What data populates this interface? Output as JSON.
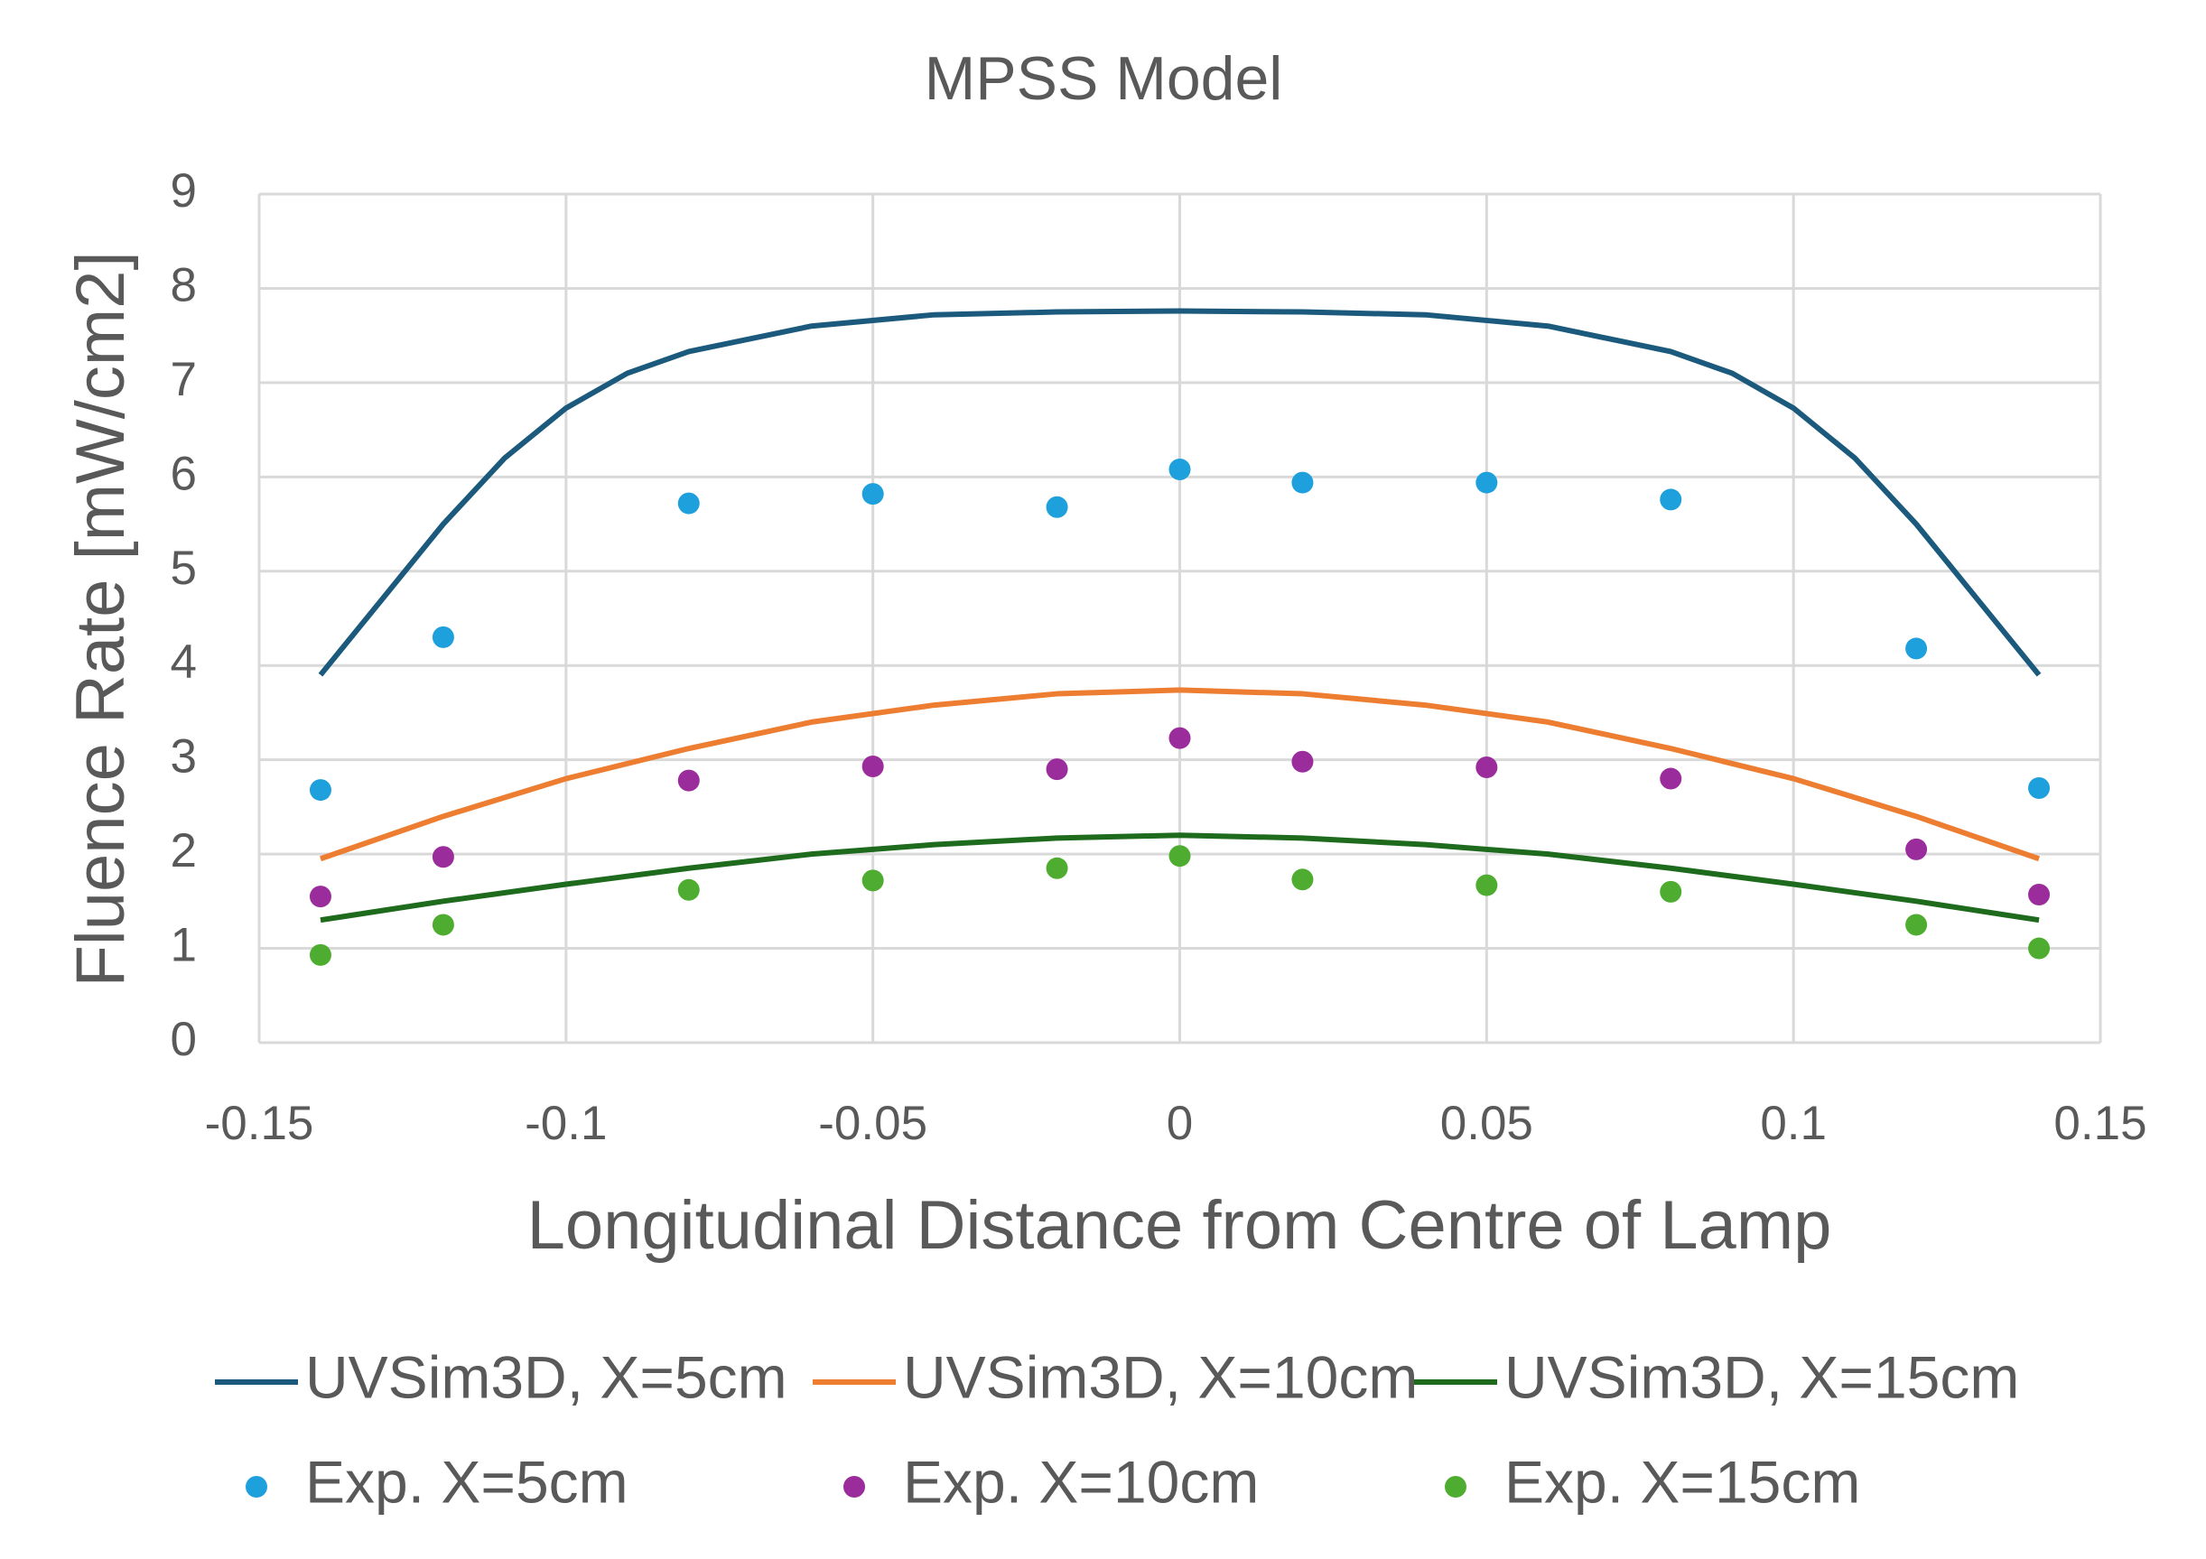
{
  "chart_data": {
    "type": "scatter",
    "title": "MPSS Model",
    "x_label": "Longitudinal Distance from Centre of Lamp",
    "y_label": "Fluence Rate [mW/cm2]",
    "xlim": [
      -0.15,
      0.15
    ],
    "xticks": [
      -0.15,
      -0.1,
      -0.05,
      0,
      0.05,
      0.1,
      0.15
    ],
    "ylim": [
      0,
      9
    ],
    "yticks": [
      0,
      1,
      2,
      3,
      4,
      5,
      6,
      7,
      8,
      9
    ],
    "grid": true,
    "legend": "bottom",
    "series": [
      {
        "name": "UVSim3D, X=5cm",
        "type": "line",
        "color": "#1b5a7c",
        "x": [
          -0.14,
          -0.13,
          -0.12,
          -0.11,
          -0.1,
          -0.09,
          -0.08,
          -0.06,
          -0.04,
          -0.02,
          0,
          0.02,
          0.04,
          0.06,
          0.08,
          0.09,
          0.1,
          0.11,
          0.12,
          0.13,
          0.14
        ],
        "values": [
          3.9,
          4.7,
          5.5,
          6.2,
          6.73,
          7.1,
          7.33,
          7.6,
          7.72,
          7.75,
          7.76,
          7.75,
          7.72,
          7.6,
          7.33,
          7.1,
          6.73,
          6.2,
          5.5,
          4.7,
          3.9
        ]
      },
      {
        "name": "UVSim3D, X=10cm",
        "type": "line",
        "color": "#ed7d31",
        "x": [
          -0.14,
          -0.12,
          -0.1,
          -0.08,
          -0.06,
          -0.04,
          -0.02,
          0,
          0.02,
          0.04,
          0.06,
          0.08,
          0.1,
          0.12,
          0.14
        ],
        "values": [
          1.95,
          2.4,
          2.8,
          3.12,
          3.4,
          3.58,
          3.7,
          3.74,
          3.7,
          3.58,
          3.4,
          3.12,
          2.8,
          2.4,
          1.95
        ]
      },
      {
        "name": "UVSim3D, X=15cm",
        "type": "line",
        "color": "#1e6b1e",
        "x": [
          -0.14,
          -0.12,
          -0.1,
          -0.08,
          -0.06,
          -0.04,
          -0.02,
          0,
          0.02,
          0.04,
          0.06,
          0.08,
          0.1,
          0.12,
          0.14
        ],
        "values": [
          1.3,
          1.5,
          1.68,
          1.85,
          2.0,
          2.1,
          2.17,
          2.2,
          2.17,
          2.1,
          2.0,
          1.85,
          1.68,
          1.5,
          1.3
        ]
      },
      {
        "name": "Exp. X=5cm",
        "type": "scatter",
        "color": "#1ea0dc",
        "x": [
          -0.14,
          -0.12,
          -0.08,
          -0.05,
          -0.02,
          0,
          0.02,
          0.05,
          0.08,
          0.12,
          0.14
        ],
        "values": [
          2.68,
          4.3,
          5.72,
          5.82,
          5.68,
          6.08,
          5.94,
          5.94,
          5.76,
          4.18,
          2.7
        ]
      },
      {
        "name": "Exp. X=10cm",
        "type": "scatter",
        "color": "#9b2c9b",
        "x": [
          -0.14,
          -0.12,
          -0.08,
          -0.05,
          -0.02,
          0,
          0.02,
          0.05,
          0.08,
          0.12,
          0.14
        ],
        "values": [
          1.55,
          1.97,
          2.78,
          2.93,
          2.9,
          3.23,
          2.98,
          2.92,
          2.8,
          2.05,
          1.57
        ]
      },
      {
        "name": "Exp. X=15cm",
        "type": "scatter",
        "color": "#4ead30",
        "x": [
          -0.14,
          -0.12,
          -0.08,
          -0.05,
          -0.02,
          0,
          0.02,
          0.05,
          0.08,
          0.12,
          0.14
        ],
        "values": [
          0.93,
          1.25,
          1.62,
          1.72,
          1.85,
          1.98,
          1.73,
          1.67,
          1.6,
          1.25,
          1.0
        ]
      }
    ]
  }
}
